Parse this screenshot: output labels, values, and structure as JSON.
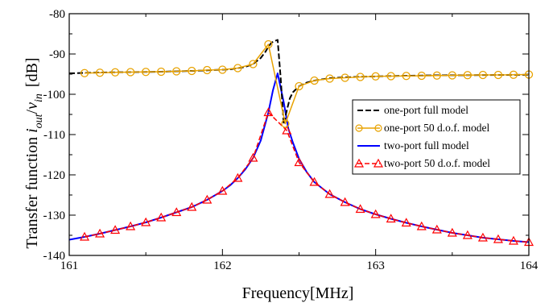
{
  "chart_data": {
    "type": "line",
    "xlabel": "Frequency[MHz]",
    "ylabel_main": "Transfer function ",
    "ylabel_math": "i",
    "ylabel_sub1": "out",
    "ylabel_slash": "/",
    "ylabel_math2": "v",
    "ylabel_sub2": "in",
    "ylabel_unit": "[dB]",
    "xlim": [
      161,
      164
    ],
    "ylim": [
      -140,
      -80
    ],
    "x_ticks": [
      161,
      162,
      163,
      164
    ],
    "x_tick_labels": [
      "161",
      "162",
      "163",
      "164"
    ],
    "y_ticks": [
      -140,
      -130,
      -120,
      -110,
      -100,
      -90,
      -80
    ],
    "y_tick_labels": [
      "-140",
      "-130",
      "-120",
      "-110",
      "-100",
      "-90",
      "-80"
    ],
    "legend_position": "right",
    "series": [
      {
        "name": "one-port full model",
        "color": "#000000",
        "style": "dashed-line",
        "x": [
          161.0,
          161.1,
          161.2,
          161.3,
          161.4,
          161.5,
          161.6,
          161.7,
          161.8,
          161.9,
          162.0,
          162.05,
          162.1,
          162.15,
          162.2,
          162.25,
          162.28,
          162.3,
          162.32,
          162.34,
          162.36,
          162.38,
          162.4,
          162.42,
          162.44,
          162.46,
          162.5,
          162.55,
          162.6,
          162.7,
          162.8,
          162.9,
          163.0,
          163.2,
          163.4,
          163.6,
          163.8,
          164.0
        ],
        "y": [
          -94.8,
          -94.7,
          -94.6,
          -94.55,
          -94.5,
          -94.45,
          -94.4,
          -94.3,
          -94.2,
          -94.05,
          -93.9,
          -93.8,
          -93.5,
          -93.2,
          -92.5,
          -91.0,
          -89.5,
          -88.2,
          -87.2,
          -86.8,
          -86.5,
          -96.0,
          -107.5,
          -104.0,
          -101.0,
          -99.5,
          -98.0,
          -97.1,
          -96.6,
          -96.0,
          -95.8,
          -95.65,
          -95.55,
          -95.4,
          -95.3,
          -95.25,
          -95.2,
          -95.15
        ]
      },
      {
        "name": "one-port 50 d.o.f. model",
        "color": "#e8a200",
        "style": "line-circle",
        "x": [
          161.1,
          161.2,
          161.3,
          161.4,
          161.5,
          161.6,
          161.7,
          161.8,
          161.9,
          162.0,
          162.1,
          162.2,
          162.3,
          162.41,
          162.5,
          162.6,
          162.7,
          162.8,
          162.9,
          163.0,
          163.1,
          163.2,
          163.3,
          163.4,
          163.5,
          163.6,
          163.7,
          163.8,
          163.9,
          164.0
        ],
        "y": [
          -94.75,
          -94.65,
          -94.55,
          -94.5,
          -94.45,
          -94.4,
          -94.3,
          -94.2,
          -94.0,
          -93.9,
          -93.5,
          -92.5,
          -87.6,
          -107.3,
          -98.0,
          -96.6,
          -96.1,
          -95.9,
          -95.7,
          -95.55,
          -95.5,
          -95.45,
          -95.4,
          -95.35,
          -95.3,
          -95.25,
          -95.2,
          -95.2,
          -95.15,
          -95.1
        ]
      },
      {
        "name": "two-port full model",
        "color": "#0000ff",
        "style": "solid-line",
        "x": [
          161.0,
          161.1,
          161.2,
          161.3,
          161.4,
          161.5,
          161.6,
          161.7,
          161.8,
          161.9,
          162.0,
          162.05,
          162.1,
          162.15,
          162.2,
          162.25,
          162.3,
          162.33,
          162.36,
          162.4,
          162.43,
          162.46,
          162.5,
          162.55,
          162.6,
          162.7,
          162.8,
          162.9,
          163.0,
          163.1,
          163.2,
          163.3,
          163.4,
          163.5,
          163.6,
          163.7,
          163.8,
          163.9,
          164.0
        ],
        "y": [
          -136.1,
          -135.4,
          -134.6,
          -133.7,
          -132.8,
          -131.8,
          -130.6,
          -129.3,
          -128.0,
          -126.2,
          -124.0,
          -122.6,
          -120.8,
          -118.6,
          -115.8,
          -111.5,
          -104.5,
          -99.0,
          -94.8,
          -102.0,
          -108.5,
          -112.0,
          -116.0,
          -119.3,
          -121.8,
          -124.8,
          -126.8,
          -128.5,
          -129.8,
          -130.9,
          -131.9,
          -132.8,
          -133.6,
          -134.4,
          -135.0,
          -135.6,
          -136.0,
          -136.4,
          -136.7
        ]
      },
      {
        "name": "two-port 50 d.o.f. model",
        "color": "#ff0000",
        "style": "dashed-line-triangle",
        "x": [
          161.1,
          161.2,
          161.3,
          161.4,
          161.5,
          161.6,
          161.7,
          161.8,
          161.9,
          162.0,
          162.1,
          162.2,
          162.3,
          162.42,
          162.5,
          162.6,
          162.7,
          162.8,
          162.9,
          163.0,
          163.1,
          163.2,
          163.3,
          163.4,
          163.5,
          163.6,
          163.7,
          163.8,
          163.9,
          164.0
        ],
        "y": [
          -135.4,
          -134.6,
          -133.7,
          -132.8,
          -131.8,
          -130.6,
          -129.3,
          -128.0,
          -126.2,
          -124.0,
          -120.8,
          -115.8,
          -104.5,
          -109.0,
          -116.9,
          -121.8,
          -124.8,
          -126.8,
          -128.5,
          -129.8,
          -130.9,
          -131.9,
          -132.8,
          -133.6,
          -134.4,
          -135.0,
          -135.6,
          -136.0,
          -136.4,
          -136.7
        ]
      }
    ]
  }
}
